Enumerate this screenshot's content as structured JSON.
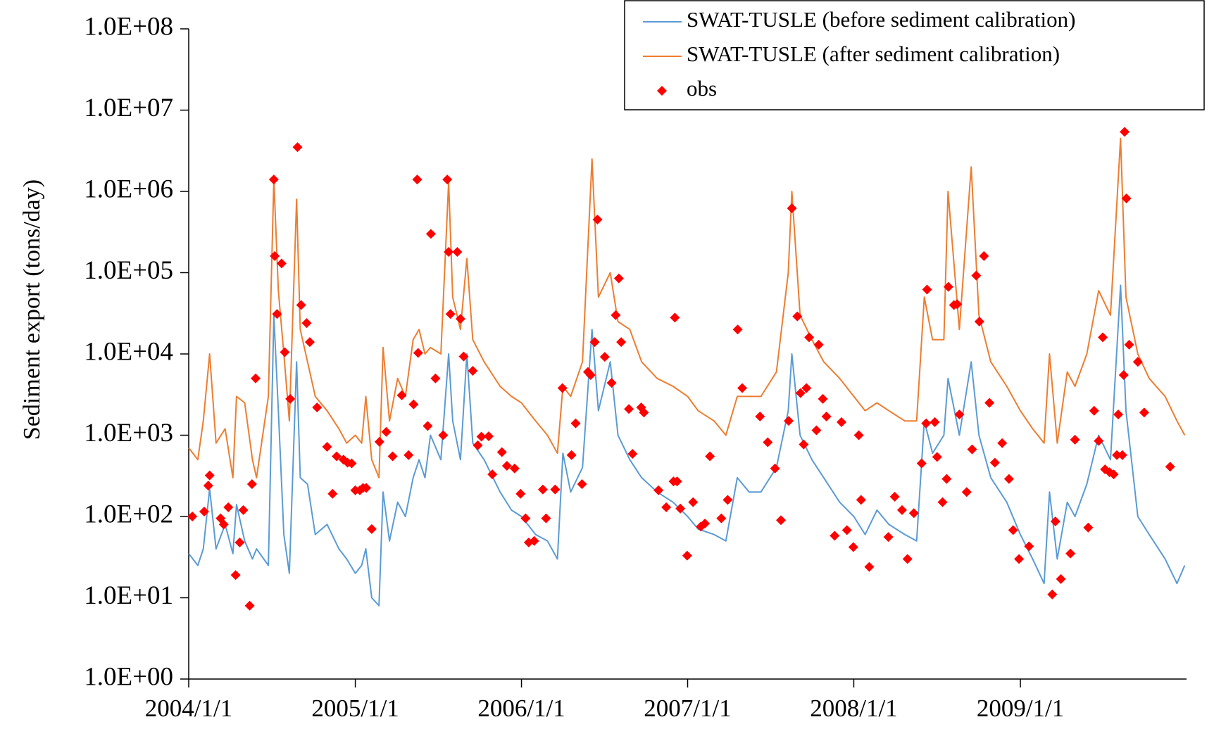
{
  "chart_data": {
    "type": "line",
    "y_label": "Sediment export  (tons/day)",
    "log_scale": true,
    "legend": "upper right",
    "xlim": [
      "2004-01-01",
      "2010-01-01"
    ],
    "xticks": [
      {
        "value": "2004-01-01",
        "label": "2004/1/1"
      },
      {
        "value": "2005-01-01",
        "label": "2005/1/1"
      },
      {
        "value": "2006-01-01",
        "label": "2006/1/1"
      },
      {
        "value": "2007-01-01",
        "label": "2007/1/1"
      },
      {
        "value": "2008-01-01",
        "label": "2008/1/1"
      },
      {
        "value": "2009-01-01",
        "label": "2009/1/1"
      }
    ],
    "ylim": [
      1,
      100000000
    ],
    "yticks": [
      {
        "value": 1,
        "label": "1.0E+00"
      },
      {
        "value": 10,
        "label": "1.0E+01"
      },
      {
        "value": 100,
        "label": "1.0E+02"
      },
      {
        "value": 1000,
        "label": "1.0E+03"
      },
      {
        "value": 10000,
        "label": "1.0E+04"
      },
      {
        "value": 100000,
        "label": "1.0E+05"
      },
      {
        "value": 1000000,
        "label": "1.0E+06"
      },
      {
        "value": 10000000,
        "label": "1.0E+07"
      },
      {
        "value": 100000000,
        "label": "1.0E+08"
      }
    ],
    "series": [
      {
        "name": "SWAT-TUSLE (before sediment calibration)",
        "color": "#5b9bd5",
        "mode": "line",
        "x": [
          "2004-01-01",
          "2004-01-21",
          "2004-02-02",
          "2004-02-16",
          "2004-03-01",
          "2004-03-21",
          "2004-04-07",
          "2004-04-15",
          "2004-05-03",
          "2004-05-20",
          "2004-05-29",
          "2004-06-24",
          "2004-07-06",
          "2004-07-16",
          "2004-07-28",
          "2004-08-09",
          "2004-08-25",
          "2004-09-02",
          "2004-09-18",
          "2004-10-05",
          "2004-10-31",
          "2004-11-26",
          "2004-12-13",
          "2005-01-01",
          "2005-01-15",
          "2005-01-24",
          "2005-02-06",
          "2005-02-22",
          "2005-03-03",
          "2005-03-17",
          "2005-04-04",
          "2005-04-21",
          "2005-05-08",
          "2005-05-21",
          "2005-06-03",
          "2005-06-15",
          "2005-07-08",
          "2005-07-25",
          "2005-08-03",
          "2005-08-20",
          "2005-09-03",
          "2005-09-16",
          "2005-10-11",
          "2005-11-15",
          "2005-12-10",
          "2006-01-01",
          "2006-02-01",
          "2006-02-27",
          "2006-03-21",
          "2006-04-02",
          "2006-04-19",
          "2006-05-15",
          "2006-06-05",
          "2006-06-19",
          "2006-07-15",
          "2006-08-01",
          "2006-08-27",
          "2006-09-22",
          "2006-10-26",
          "2006-11-30",
          "2007-01-01",
          "2007-01-24",
          "2007-02-28",
          "2007-03-26",
          "2007-04-20",
          "2007-05-16",
          "2007-06-11",
          "2007-07-15",
          "2007-08-10",
          "2007-08-18",
          "2007-09-05",
          "2007-10-01",
          "2007-10-27",
          "2007-12-01",
          "2008-01-01",
          "2008-01-26",
          "2008-02-21",
          "2008-03-18",
          "2008-04-22",
          "2008-05-18",
          "2008-06-04",
          "2008-06-22",
          "2008-07-17",
          "2008-07-26",
          "2008-08-20",
          "2008-09-15",
          "2008-10-02",
          "2008-10-28",
          "2008-12-02",
          "2009-01-01",
          "2009-01-28",
          "2009-02-22",
          "2009-03-06",
          "2009-03-23",
          "2009-04-14",
          "2009-05-01",
          "2009-05-27",
          "2009-06-22",
          "2009-07-18",
          "2009-08-09",
          "2009-08-21",
          "2009-09-16",
          "2009-10-11",
          "2009-11-15",
          "2009-12-11",
          "2009-12-28"
        ],
        "values": [
          35,
          25,
          40,
          220,
          40,
          80,
          35,
          140,
          50,
          30,
          40,
          25,
          30000,
          2000,
          60,
          20,
          8000,
          300,
          250,
          60,
          80,
          40,
          30,
          20,
          25,
          40,
          10,
          8,
          200,
          50,
          150,
          100,
          300,
          500,
          300,
          1000,
          500,
          10000,
          1500,
          500,
          10000,
          800,
          500,
          200,
          120,
          100,
          60,
          50,
          30,
          600,
          200,
          400,
          20000,
          2000,
          8000,
          1000,
          500,
          300,
          200,
          150,
          100,
          70,
          60,
          50,
          300,
          200,
          200,
          400,
          2000,
          10000,
          1000,
          500,
          300,
          150,
          100,
          60,
          120,
          80,
          60,
          50,
          1500,
          600,
          1000,
          5000,
          1000,
          8000,
          1000,
          300,
          150,
          60,
          30,
          15,
          200,
          30,
          150,
          100,
          250,
          1000,
          500,
          70000,
          2000,
          100,
          60,
          30,
          15,
          25
        ]
      },
      {
        "name": "SWAT-TUSLE (after sediment calibration)",
        "color": "#ed7d31",
        "mode": "line",
        "x": [
          "2004-01-01",
          "2004-01-21",
          "2004-02-02",
          "2004-02-16",
          "2004-03-01",
          "2004-03-21",
          "2004-04-07",
          "2004-04-15",
          "2004-05-03",
          "2004-05-20",
          "2004-05-29",
          "2004-06-24",
          "2004-07-06",
          "2004-07-16",
          "2004-07-28",
          "2004-08-09",
          "2004-08-25",
          "2004-09-02",
          "2004-09-18",
          "2004-10-05",
          "2004-10-31",
          "2004-11-26",
          "2004-12-13",
          "2005-01-01",
          "2005-01-15",
          "2005-01-24",
          "2005-02-06",
          "2005-02-22",
          "2005-03-03",
          "2005-03-17",
          "2005-04-04",
          "2005-04-21",
          "2005-05-08",
          "2005-05-21",
          "2005-06-03",
          "2005-06-15",
          "2005-07-08",
          "2005-07-25",
          "2005-08-03",
          "2005-08-20",
          "2005-09-03",
          "2005-09-16",
          "2005-10-11",
          "2005-11-15",
          "2005-12-10",
          "2006-01-01",
          "2006-02-01",
          "2006-02-27",
          "2006-03-21",
          "2006-04-02",
          "2006-04-19",
          "2006-05-15",
          "2006-06-05",
          "2006-06-19",
          "2006-07-15",
          "2006-08-01",
          "2006-08-27",
          "2006-09-22",
          "2006-10-26",
          "2006-11-30",
          "2007-01-01",
          "2007-01-24",
          "2007-02-28",
          "2007-03-26",
          "2007-04-20",
          "2007-05-16",
          "2007-06-11",
          "2007-07-15",
          "2007-08-10",
          "2007-08-18",
          "2007-09-05",
          "2007-10-01",
          "2007-10-27",
          "2007-12-01",
          "2008-01-01",
          "2008-01-26",
          "2008-02-21",
          "2008-03-18",
          "2008-04-22",
          "2008-05-18",
          "2008-06-04",
          "2008-06-22",
          "2008-07-17",
          "2008-07-26",
          "2008-08-20",
          "2008-09-15",
          "2008-10-02",
          "2008-10-28",
          "2008-12-02",
          "2009-01-01",
          "2009-01-28",
          "2009-02-22",
          "2009-03-06",
          "2009-03-23",
          "2009-04-14",
          "2009-05-01",
          "2009-05-27",
          "2009-06-22",
          "2009-07-18",
          "2009-08-09",
          "2009-08-21",
          "2009-09-16",
          "2009-10-11",
          "2009-11-15",
          "2009-12-11",
          "2009-12-28"
        ],
        "values": [
          700,
          500,
          1500,
          10000,
          800,
          1200,
          300,
          3000,
          2500,
          500,
          300,
          3000,
          1400000,
          60000,
          10000,
          1500,
          800000,
          20000,
          8000,
          3000,
          2000,
          1200,
          800,
          1000,
          800,
          3000,
          500,
          300,
          12000,
          1500,
          5000,
          3000,
          15000,
          20000,
          10000,
          12000,
          10000,
          1300000,
          50000,
          20000,
          150000,
          15000,
          8000,
          4000,
          3000,
          2500,
          1500,
          1000,
          600,
          4000,
          3000,
          8000,
          2500000,
          50000,
          100000,
          25000,
          20000,
          8000,
          5000,
          4000,
          3000,
          2000,
          1500,
          1000,
          3000,
          3000,
          3000,
          6000,
          100000,
          1000000,
          30000,
          15000,
          8000,
          5000,
          3000,
          2000,
          2500,
          2000,
          1500,
          1500,
          50000,
          15000,
          15000,
          1000000,
          20000,
          2000000,
          30000,
          8000,
          4000,
          2000,
          1200,
          800,
          10000,
          800,
          6000,
          4000,
          10000,
          60000,
          30000,
          4500000,
          50000,
          10000,
          5000,
          3000,
          1500,
          1000
        ]
      },
      {
        "name": "obs",
        "color": "#ff0000",
        "mode": "markers",
        "x": [
          "2004-01-09",
          "2004-02-04",
          "2004-02-13",
          "2004-02-16",
          "2004-03-11",
          "2004-03-18",
          "2004-03-28",
          "2004-04-13",
          "2004-04-22",
          "2004-04-30",
          "2004-05-14",
          "2004-05-19",
          "2004-05-27",
          "2004-07-06",
          "2004-07-08",
          "2004-07-13",
          "2004-07-23",
          "2004-07-30",
          "2004-08-11",
          "2004-08-27",
          "2004-09-04",
          "2004-09-16",
          "2004-09-23",
          "2004-10-09",
          "2004-10-31",
          "2004-11-12",
          "2004-11-21",
          "2004-12-06",
          "2004-12-15",
          "2004-12-24",
          "2005-01-01",
          "2005-01-11",
          "2005-01-18",
          "2005-01-25",
          "2005-02-06",
          "2005-02-23",
          "2005-03-10",
          "2005-03-24",
          "2005-04-13",
          "2005-04-28",
          "2005-05-09",
          "2005-05-17",
          "2005-05-19",
          "2005-06-09",
          "2005-06-16",
          "2005-06-26",
          "2005-07-13",
          "2005-07-22",
          "2005-07-25",
          "2005-07-29",
          "2005-08-13",
          "2005-08-20",
          "2005-08-27",
          "2005-09-16",
          "2005-09-27",
          "2005-10-05",
          "2005-10-21",
          "2005-10-29",
          "2005-11-19",
          "2005-11-30",
          "2005-12-17",
          "2005-12-30",
          "2006-01-10",
          "2006-01-17",
          "2006-01-29",
          "2006-02-17",
          "2006-02-24",
          "2006-03-16",
          "2006-04-01",
          "2006-04-21",
          "2006-04-30",
          "2006-05-14",
          "2006-05-27",
          "2006-06-02",
          "2006-06-11",
          "2006-06-17",
          "2006-07-03",
          "2006-07-18",
          "2006-07-27",
          "2006-08-03",
          "2006-08-08",
          "2006-08-25",
          "2006-09-02",
          "2006-09-21",
          "2006-09-27",
          "2006-10-29",
          "2006-11-15",
          "2006-12-01",
          "2006-12-04",
          "2006-12-09",
          "2006-12-16",
          "2006-12-31",
          "2007-01-13",
          "2007-01-30",
          "2007-02-08",
          "2007-02-19",
          "2007-03-16",
          "2007-03-30",
          "2007-04-21",
          "2007-05-01",
          "2007-06-09",
          "2007-06-26",
          "2007-07-12",
          "2007-07-25",
          "2007-08-11",
          "2007-08-18",
          "2007-08-30",
          "2007-09-06",
          "2007-09-13",
          "2007-09-19",
          "2007-09-25",
          "2007-10-11",
          "2007-10-16",
          "2007-10-25",
          "2007-11-02",
          "2007-11-20",
          "2007-12-05",
          "2007-12-17",
          "2007-12-31",
          "2008-01-12",
          "2008-01-17",
          "2008-02-04",
          "2008-03-17",
          "2008-03-31",
          "2008-04-16",
          "2008-04-28",
          "2008-05-12",
          "2008-05-29",
          "2008-06-08",
          "2008-06-10",
          "2008-06-27",
          "2008-07-02",
          "2008-07-14",
          "2008-07-23",
          "2008-07-27",
          "2008-08-08",
          "2008-08-15",
          "2008-08-20",
          "2008-09-05",
          "2008-09-17",
          "2008-09-26",
          "2008-10-03",
          "2008-10-13",
          "2008-10-25",
          "2008-11-06",
          "2008-11-22",
          "2008-12-07",
          "2008-12-16",
          "2008-12-29",
          "2009-01-20",
          "2009-03-12",
          "2009-03-19",
          "2009-03-31",
          "2009-04-21",
          "2009-05-01",
          "2009-05-30",
          "2009-06-12",
          "2009-06-22",
          "2009-07-01",
          "2009-07-06",
          "2009-07-16",
          "2009-07-25",
          "2009-08-01",
          "2009-08-04",
          "2009-08-13",
          "2009-08-16",
          "2009-08-18",
          "2009-08-22",
          "2009-08-28",
          "2009-09-16",
          "2009-09-30",
          "2009-11-26"
        ],
        "values": [
          100,
          115,
          240,
          320,
          95,
          80,
          130,
          19,
          48,
          120,
          8,
          250,
          5000,
          1400000,
          160000,
          31000,
          130000,
          10500,
          2800,
          3500000,
          40000,
          24000,
          14000,
          2200,
          720,
          190,
          550,
          500,
          460,
          450,
          210,
          210,
          225,
          225,
          70,
          830,
          1100,
          550,
          3100,
          570,
          2400,
          1400000,
          10300,
          1300,
          300000,
          5000,
          1000,
          1400000,
          180000,
          31000,
          180000,
          27000,
          9300,
          6200,
          750,
          960,
          970,
          330,
          620,
          420,
          390,
          190,
          95,
          48,
          50,
          215,
          95,
          215,
          3800,
          570,
          1400,
          250,
          6000,
          5500,
          14000,
          450000,
          9200,
          4400,
          30000,
          85000,
          14000,
          2100,
          590,
          2200,
          1900,
          210,
          130,
          270,
          28000,
          270,
          125,
          33,
          150,
          75,
          82,
          550,
          95,
          160,
          20000,
          3800,
          1700,
          820,
          390,
          90,
          1500,
          620000,
          29000,
          3300,
          770,
          3800,
          16000,
          1150,
          13000,
          2800,
          1700,
          58,
          1450,
          68,
          42,
          1000,
          160,
          24,
          56,
          175,
          120,
          30,
          110,
          450,
          1400,
          62000,
          1450,
          540,
          150,
          290,
          67000,
          40000,
          41000,
          1800,
          200,
          670,
          92000,
          25000,
          160000,
          2500,
          460,
          800,
          290,
          68,
          30,
          43,
          11,
          87,
          17,
          35,
          880,
          73,
          2000,
          850,
          16000,
          380,
          350,
          330,
          570,
          1800,
          570,
          5500,
          5400000,
          820000,
          13000,
          8000,
          1900,
          410
        ]
      }
    ]
  }
}
